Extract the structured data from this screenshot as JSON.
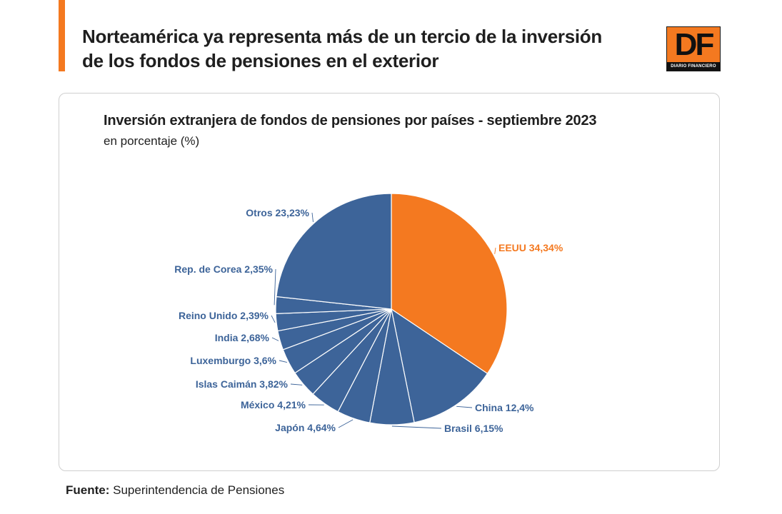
{
  "headline": "Norteamérica ya representa más de un tercio de la inversión de los fondos de pensiones en el exterior",
  "logo": {
    "mark": "DF",
    "tagline": "DIARIO FINANCIERO"
  },
  "footer": {
    "label": "Fuente:",
    "text": "Superintendencia de Pensiones"
  },
  "colors": {
    "accent": "#f47920",
    "series": "#3d6499",
    "text": "#1f1f1f"
  },
  "chart_data": {
    "type": "pie",
    "title": "Inversión extranjera de fondos de pensiones por países - septiembre 2023",
    "subtitle": "en porcentaje (%)",
    "slices": [
      {
        "name": "EEUU",
        "value": 34.34,
        "label": "EEUU 34,34%",
        "highlight": true
      },
      {
        "name": "China",
        "value": 12.4,
        "label": "China 12,4%"
      },
      {
        "name": "Brasil",
        "value": 6.15,
        "label": "Brasil 6,15%"
      },
      {
        "name": "Japón",
        "value": 4.64,
        "label": "Japón 4,64%"
      },
      {
        "name": "México",
        "value": 4.21,
        "label": "México 4,21%"
      },
      {
        "name": "Islas Caimán",
        "value": 3.82,
        "label": "Islas Caimán 3,82%"
      },
      {
        "name": "Luxemburgo",
        "value": 3.6,
        "label": "Luxemburgo 3,6%"
      },
      {
        "name": "India",
        "value": 2.68,
        "label": "India 2,68%"
      },
      {
        "name": "Reino Unido",
        "value": 2.39,
        "label": "Reino Unido 2,39%"
      },
      {
        "name": "Rep. de Corea",
        "value": 2.35,
        "label": "Rep. de Corea 2,35%"
      },
      {
        "name": "Otros",
        "value": 23.23,
        "label": "Otros 23,23%"
      }
    ]
  }
}
